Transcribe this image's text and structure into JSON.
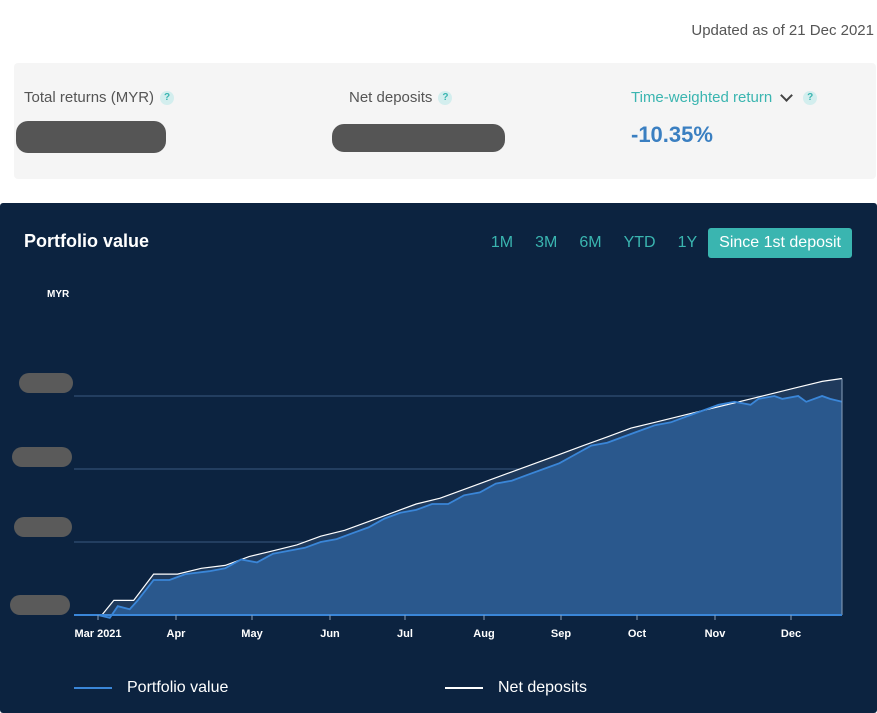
{
  "header": {
    "updated": "Updated as of 21 Dec 2021"
  },
  "summary": {
    "total_returns_label": "Total returns (MYR)",
    "net_deposits_label": "Net deposits",
    "twr_label": "Time-weighted return",
    "twr_value": "-10.35%",
    "help_glyph": "?"
  },
  "chart": {
    "title": "Portfolio value",
    "ranges": [
      "1M",
      "3M",
      "6M",
      "YTD",
      "1Y",
      "Since 1st deposit"
    ],
    "active_range": "Since 1st deposit",
    "ylabel": "MYR",
    "legend": {
      "portfolio": "Portfolio value",
      "net_deposits": "Net deposits"
    }
  },
  "chart_data": {
    "type": "area",
    "title": "Portfolio value",
    "ylabel": "MYR",
    "y_tick_labels_redacted": true,
    "y_normalized_range": [
      0,
      100
    ],
    "x_tick_labels": [
      "Mar 2021",
      "Apr",
      "May",
      "Jun",
      "Jul",
      "Aug",
      "Sep",
      "Oct",
      "Nov",
      "Dec"
    ],
    "colors": {
      "portfolio": "#3a86d8",
      "net_deposits": "#ffffff",
      "background": "#0c2340"
    },
    "series": [
      {
        "name": "Net deposits",
        "points": [
          [
            0,
            0
          ],
          [
            0.35,
            0
          ],
          [
            0.5,
            5
          ],
          [
            0.75,
            5
          ],
          [
            1,
            14
          ],
          [
            1.3,
            14
          ],
          [
            1.6,
            16
          ],
          [
            1.9,
            17
          ],
          [
            2.2,
            20
          ],
          [
            2.5,
            22
          ],
          [
            2.8,
            24
          ],
          [
            3.1,
            27
          ],
          [
            3.4,
            29
          ],
          [
            3.7,
            32
          ],
          [
            4,
            35
          ],
          [
            4.3,
            38
          ],
          [
            4.6,
            40
          ],
          [
            4.9,
            43
          ],
          [
            5.2,
            46
          ],
          [
            5.5,
            49
          ],
          [
            5.8,
            52
          ],
          [
            6.1,
            55
          ],
          [
            6.4,
            58
          ],
          [
            6.7,
            61
          ],
          [
            7,
            64
          ],
          [
            7.3,
            66
          ],
          [
            7.6,
            68
          ],
          [
            7.9,
            70
          ],
          [
            8.2,
            72
          ],
          [
            8.5,
            74
          ],
          [
            8.8,
            76
          ],
          [
            9.1,
            78
          ],
          [
            9.4,
            80
          ],
          [
            9.65,
            81
          ]
        ]
      },
      {
        "name": "Portfolio value",
        "points": [
          [
            0,
            0
          ],
          [
            0.3,
            0
          ],
          [
            0.45,
            -1
          ],
          [
            0.55,
            3
          ],
          [
            0.7,
            2
          ],
          [
            0.8,
            5
          ],
          [
            1,
            12
          ],
          [
            1.2,
            12
          ],
          [
            1.4,
            14
          ],
          [
            1.7,
            15
          ],
          [
            1.9,
            16
          ],
          [
            2.1,
            19
          ],
          [
            2.3,
            18
          ],
          [
            2.5,
            21
          ],
          [
            2.7,
            22
          ],
          [
            2.9,
            23
          ],
          [
            3.1,
            25
          ],
          [
            3.3,
            26
          ],
          [
            3.5,
            28
          ],
          [
            3.7,
            30
          ],
          [
            3.9,
            33
          ],
          [
            4.1,
            35
          ],
          [
            4.3,
            36
          ],
          [
            4.5,
            38
          ],
          [
            4.7,
            38
          ],
          [
            4.9,
            41
          ],
          [
            5.1,
            42
          ],
          [
            5.3,
            45
          ],
          [
            5.5,
            46
          ],
          [
            5.7,
            48
          ],
          [
            5.9,
            50
          ],
          [
            6.1,
            52
          ],
          [
            6.3,
            55
          ],
          [
            6.5,
            58
          ],
          [
            6.7,
            59
          ],
          [
            6.9,
            61
          ],
          [
            7.1,
            63
          ],
          [
            7.3,
            65
          ],
          [
            7.5,
            66
          ],
          [
            7.7,
            68
          ],
          [
            7.9,
            70
          ],
          [
            8.1,
            72
          ],
          [
            8.3,
            73
          ],
          [
            8.5,
            72
          ],
          [
            8.6,
            74
          ],
          [
            8.8,
            75
          ],
          [
            8.9,
            74
          ],
          [
            9.1,
            75
          ],
          [
            9.2,
            73
          ],
          [
            9.4,
            75
          ],
          [
            9.5,
            74
          ],
          [
            9.65,
            73
          ]
        ]
      }
    ],
    "grid": true,
    "legend_position": "bottom"
  }
}
